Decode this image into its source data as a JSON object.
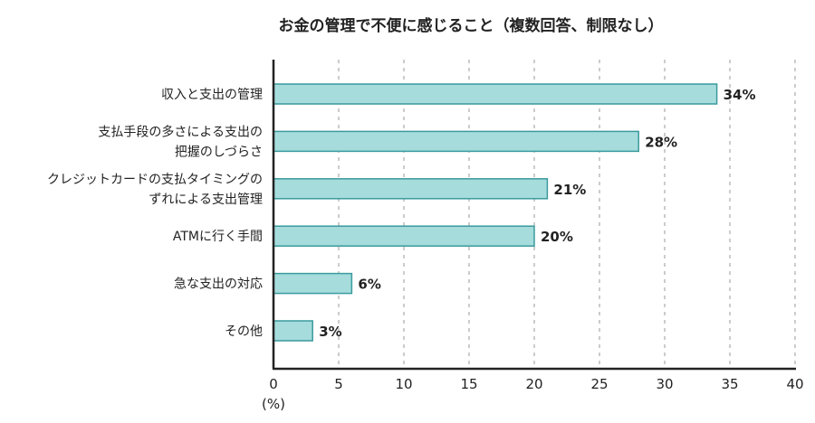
{
  "chart_data": {
    "type": "bar",
    "orientation": "horizontal",
    "title": "お金の管理で不便に感じること（複数回答、制限なし）",
    "categories": [
      [
        "収入と支出の管理"
      ],
      [
        "支払手段の多さによる支出の",
        "把握のしづらさ"
      ],
      [
        "クレジットカードの支払タイミングの",
        "ずれによる支出管理"
      ],
      [
        "ATMに行く手間"
      ],
      [
        "急な支出の対応"
      ],
      [
        "その他"
      ]
    ],
    "values": [
      34,
      28,
      21,
      20,
      6,
      3
    ],
    "data_labels": [
      "34%",
      "28%",
      "21%",
      "20%",
      "6%",
      "3%"
    ],
    "xlabel": "(%)",
    "xlim": [
      0,
      40
    ],
    "xticks": [
      "0",
      "5",
      "10",
      "15",
      "20",
      "25",
      "30",
      "35",
      "40"
    ],
    "grid": "vertical dashed",
    "colors": {
      "bar_fill": "#a6dcdc",
      "bar_stroke": "#3a9a9e",
      "grid": "#999999",
      "axis": "#222222"
    }
  }
}
